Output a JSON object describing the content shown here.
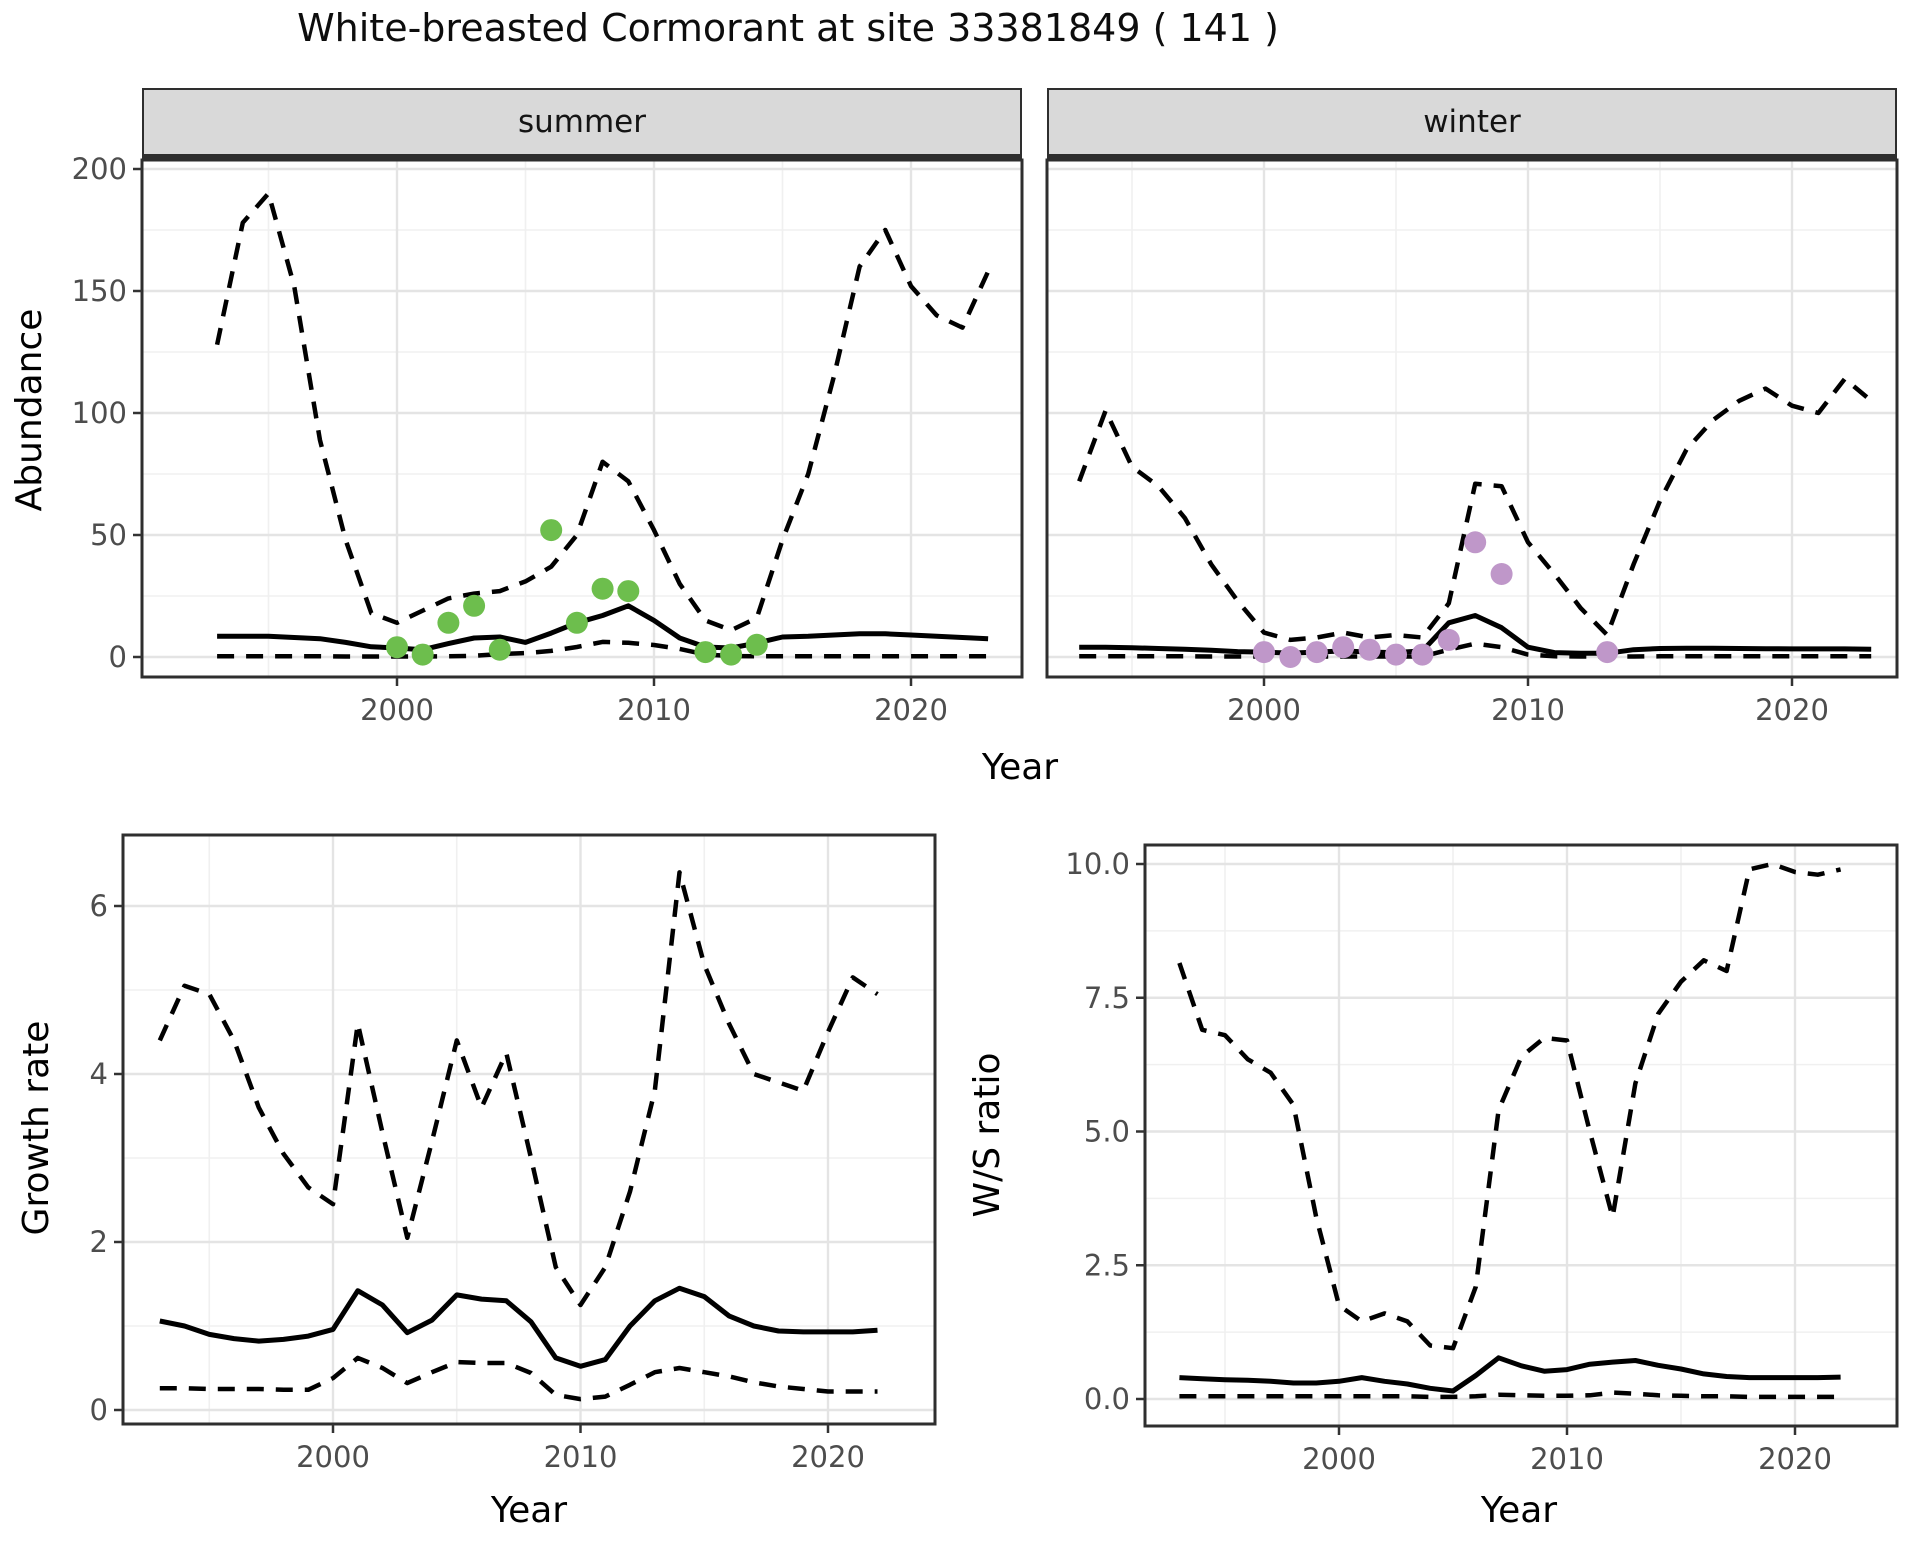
{
  "title": "White-breasted Cormorant at site 33381849 ( 141 )",
  "colors": {
    "observation_green": "#6dbe4d",
    "observation_purple": "#bf97c9",
    "line_black": "#000000",
    "grid_major": "#e4e4e4",
    "grid_minor": "#f0f0f0",
    "panel_border": "#2e2e2e",
    "strip_background": "#d9d9d9",
    "tick_text": "#4d4d4d"
  },
  "chart_data": [
    {
      "facet": "summer",
      "type": "line",
      "xlabel": "Year",
      "ylabel": "Abundance",
      "xlim": [
        1990,
        2024
      ],
      "ylim": [
        -8,
        204
      ],
      "grid": true,
      "legend": "none",
      "x_ticks": {
        "values": [
          2000,
          2010,
          2020
        ],
        "labels": [
          "2000",
          "2010",
          "2020"
        ]
      },
      "y_ticks": {
        "values": [
          0,
          50,
          100,
          150,
          200
        ],
        "labels": [
          "0",
          "50",
          "100",
          "150",
          "200"
        ]
      },
      "x": [
        1993,
        1994,
        1995,
        1996,
        1997,
        1998,
        1999,
        2000,
        2001,
        2002,
        2003,
        2004,
        2005,
        2006,
        2007,
        2008,
        2009,
        2010,
        2011,
        2012,
        2013,
        2014,
        2015,
        2016,
        2017,
        2018,
        2019,
        2020,
        2021,
        2022,
        2023
      ],
      "series": [
        {
          "name": "upper_95ci",
          "line": "dashed",
          "values": [
            128,
            178,
            190,
            152,
            89,
            48,
            18,
            14,
            19,
            24,
            26,
            27,
            31,
            37,
            50,
            80,
            72,
            52,
            30,
            15,
            11,
            16,
            48,
            75,
            115,
            160,
            175,
            152,
            140,
            135,
            158
          ]
        },
        {
          "name": "mean",
          "line": "solid",
          "values": [
            8.5,
            8.5,
            8.5,
            8,
            7.5,
            6,
            4.2,
            3.7,
            3,
            5.5,
            7.8,
            8.2,
            6,
            9.8,
            14,
            17,
            21,
            15,
            7.8,
            4.1,
            3.7,
            5.7,
            8.2,
            8.5,
            9,
            9.5,
            9.5,
            9,
            8.5,
            8,
            7.5
          ]
        },
        {
          "name": "lower_95ci",
          "line": "dashed",
          "values": [
            0.3,
            0.3,
            0.3,
            0.3,
            0.3,
            0.2,
            0.2,
            0.2,
            0.2,
            0.3,
            0.5,
            1.2,
            1.6,
            2.5,
            4.1,
            6.2,
            5.8,
            4.9,
            3.3,
            1,
            0.4,
            0.3,
            0.3,
            0.3,
            0.3,
            0.3,
            0.3,
            0.3,
            0.3,
            0.3,
            0.3
          ]
        }
      ],
      "points": {
        "name": "summer observations",
        "color": "observation_green",
        "x": [
          2000,
          2001,
          2002,
          2003,
          2004,
          2006,
          2007,
          2008,
          2009,
          2012,
          2013,
          2014
        ],
        "y": [
          4,
          1,
          14,
          21,
          3,
          52,
          14,
          28,
          27,
          2,
          1,
          5
        ]
      }
    },
    {
      "facet": "winter",
      "type": "line",
      "xlabel": "Year",
      "ylabel": "Abundance",
      "xlim": [
        1991,
        2024
      ],
      "ylim": [
        -8,
        204
      ],
      "grid": true,
      "legend": "none",
      "x_ticks": {
        "values": [
          2000,
          2010,
          2020
        ],
        "labels": [
          "2000",
          "2010",
          "2020"
        ]
      },
      "y_ticks": {
        "values": [
          0,
          50,
          100,
          150,
          200
        ],
        "labels": [
          "0",
          "50",
          "100",
          "150",
          "200"
        ]
      },
      "x": [
        1993,
        1994,
        1995,
        1996,
        1997,
        1998,
        1999,
        2000,
        2001,
        2002,
        2003,
        2004,
        2005,
        2006,
        2007,
        2008,
        2009,
        2010,
        2011,
        2012,
        2013,
        2014,
        2015,
        2016,
        2017,
        2018,
        2019,
        2020,
        2021,
        2022,
        2023
      ],
      "series": [
        {
          "name": "upper_95ci",
          "line": "dashed",
          "values": [
            72,
            101,
            78,
            70,
            57,
            38,
            23,
            10,
            7,
            8,
            10,
            8,
            9,
            8,
            22,
            71,
            70,
            47,
            34,
            20,
            9,
            38,
            64,
            85,
            97,
            105,
            110,
            103,
            100,
            114,
            105
          ]
        },
        {
          "name": "mean",
          "line": "solid",
          "values": [
            4,
            4,
            3.8,
            3.5,
            3.2,
            2.8,
            2.2,
            2,
            1.6,
            2,
            2.5,
            2,
            1.8,
            2.5,
            14,
            17,
            12,
            4,
            1.8,
            1.5,
            1.5,
            3,
            3.5,
            3.6,
            3.6,
            3.5,
            3.4,
            3.3,
            3.3,
            3.3,
            3.2
          ]
        },
        {
          "name": "lower_95ci",
          "line": "dashed",
          "values": [
            0.3,
            0.3,
            0.3,
            0.3,
            0.3,
            0.2,
            0.2,
            0.2,
            0.2,
            0.2,
            0.2,
            0.2,
            0.2,
            0.2,
            3,
            5.5,
            4,
            1,
            0.3,
            0.2,
            0.2,
            0.2,
            0.3,
            0.3,
            0.3,
            0.3,
            0.3,
            0.3,
            0.3,
            0.3,
            0.3
          ]
        }
      ],
      "points": {
        "name": "winter observations",
        "color": "observation_purple",
        "x": [
          2000,
          2001,
          2002,
          2003,
          2004,
          2005,
          2006,
          2007,
          2008,
          2009,
          2013
        ],
        "y": [
          2,
          0,
          2,
          4,
          3,
          1,
          1,
          7,
          47,
          34,
          2
        ]
      }
    },
    {
      "facet": null,
      "type": "line",
      "xlabel": "Year",
      "ylabel": "Growth rate",
      "xlim": [
        1991.5,
        2024
      ],
      "ylim": [
        -0.17,
        6.85
      ],
      "grid": true,
      "legend": "none",
      "x_ticks": {
        "values": [
          2000,
          2010,
          2020
        ],
        "labels": [
          "2000",
          "2010",
          "2020"
        ]
      },
      "y_ticks": {
        "values": [
          0,
          2,
          4,
          6
        ],
        "labels": [
          "0",
          "2",
          "4",
          "6"
        ]
      },
      "x": [
        1993,
        1994,
        1995,
        1996,
        1997,
        1998,
        1999,
        2000,
        2001,
        2002,
        2003,
        2004,
        2005,
        2006,
        2007,
        2008,
        2009,
        2010,
        2011,
        2012,
        2013,
        2014,
        2015,
        2016,
        2017,
        2018,
        2019,
        2020,
        2021,
        2022
      ],
      "series": [
        {
          "name": "upper_95ci",
          "line": "dashed",
          "values": [
            4.4,
            5.05,
            4.95,
            4.4,
            3.6,
            3.05,
            2.65,
            2.45,
            4.6,
            3.3,
            2.05,
            3.2,
            4.4,
            3.6,
            4.25,
            3.0,
            1.7,
            1.25,
            1.7,
            2.6,
            3.8,
            6.4,
            5.3,
            4.6,
            4.0,
            3.9,
            3.8,
            4.5,
            5.15,
            4.95
          ]
        },
        {
          "name": "mean",
          "line": "solid",
          "values": [
            1.06,
            1.0,
            0.9,
            0.85,
            0.82,
            0.84,
            0.88,
            0.96,
            1.42,
            1.25,
            0.92,
            1.07,
            1.37,
            1.32,
            1.3,
            1.05,
            0.62,
            0.52,
            0.6,
            1.0,
            1.3,
            1.45,
            1.35,
            1.12,
            1.0,
            0.94,
            0.93,
            0.93,
            0.93,
            0.95
          ]
        },
        {
          "name": "lower_95ci",
          "line": "dashed",
          "values": [
            0.26,
            0.26,
            0.25,
            0.25,
            0.25,
            0.24,
            0.24,
            0.38,
            0.62,
            0.5,
            0.32,
            0.45,
            0.57,
            0.56,
            0.56,
            0.44,
            0.18,
            0.13,
            0.16,
            0.3,
            0.45,
            0.5,
            0.45,
            0.4,
            0.33,
            0.28,
            0.25,
            0.22,
            0.22,
            0.22
          ]
        }
      ]
    },
    {
      "facet": null,
      "type": "line",
      "xlabel": "Year",
      "ylabel": "W/S ratio",
      "xlim": [
        1991.5,
        2024.5
      ],
      "ylim": [
        -0.49,
        10.43
      ],
      "grid": true,
      "legend": "none",
      "x_ticks": {
        "values": [
          2000,
          2010,
          2020
        ],
        "labels": [
          "2000",
          "2010",
          "2020"
        ]
      },
      "y_ticks": {
        "values": [
          0,
          2.5,
          5,
          7.5,
          10
        ],
        "labels": [
          "0.0",
          "2.5",
          "5.0",
          "7.5",
          "10.0"
        ]
      },
      "x": [
        1993,
        1994,
        1995,
        1996,
        1997,
        1998,
        1999,
        2000,
        2001,
        2002,
        2003,
        2004,
        2005,
        2006,
        2007,
        2008,
        2009,
        2010,
        2011,
        2012,
        2013,
        2014,
        2015,
        2016,
        2017,
        2018,
        2019,
        2020,
        2021,
        2022
      ],
      "series": [
        {
          "name": "upper_95ci",
          "line": "dashed",
          "values": [
            8.15,
            6.9,
            6.8,
            6.35,
            6.1,
            5.5,
            3.4,
            1.75,
            1.45,
            1.6,
            1.45,
            1.0,
            0.95,
            2.1,
            5.4,
            6.4,
            6.75,
            6.7,
            5.0,
            3.4,
            5.9,
            7.2,
            7.8,
            8.2,
            8.0,
            9.9,
            10.0,
            9.85,
            9.8,
            9.9
          ]
        },
        {
          "name": "mean",
          "line": "solid",
          "values": [
            0.4,
            0.38,
            0.36,
            0.35,
            0.33,
            0.3,
            0.3,
            0.33,
            0.4,
            0.33,
            0.28,
            0.2,
            0.15,
            0.44,
            0.77,
            0.62,
            0.52,
            0.55,
            0.65,
            0.69,
            0.72,
            0.63,
            0.56,
            0.47,
            0.42,
            0.4,
            0.4,
            0.4,
            0.4,
            0.41
          ]
        },
        {
          "name": "lower_95ci",
          "line": "dashed",
          "values": [
            0.05,
            0.05,
            0.05,
            0.05,
            0.05,
            0.05,
            0.05,
            0.05,
            0.05,
            0.05,
            0.05,
            0.04,
            0.04,
            0.05,
            0.08,
            0.07,
            0.06,
            0.06,
            0.07,
            0.12,
            0.1,
            0.07,
            0.06,
            0.05,
            0.05,
            0.04,
            0.04,
            0.04,
            0.04,
            0.04
          ]
        }
      ]
    }
  ]
}
